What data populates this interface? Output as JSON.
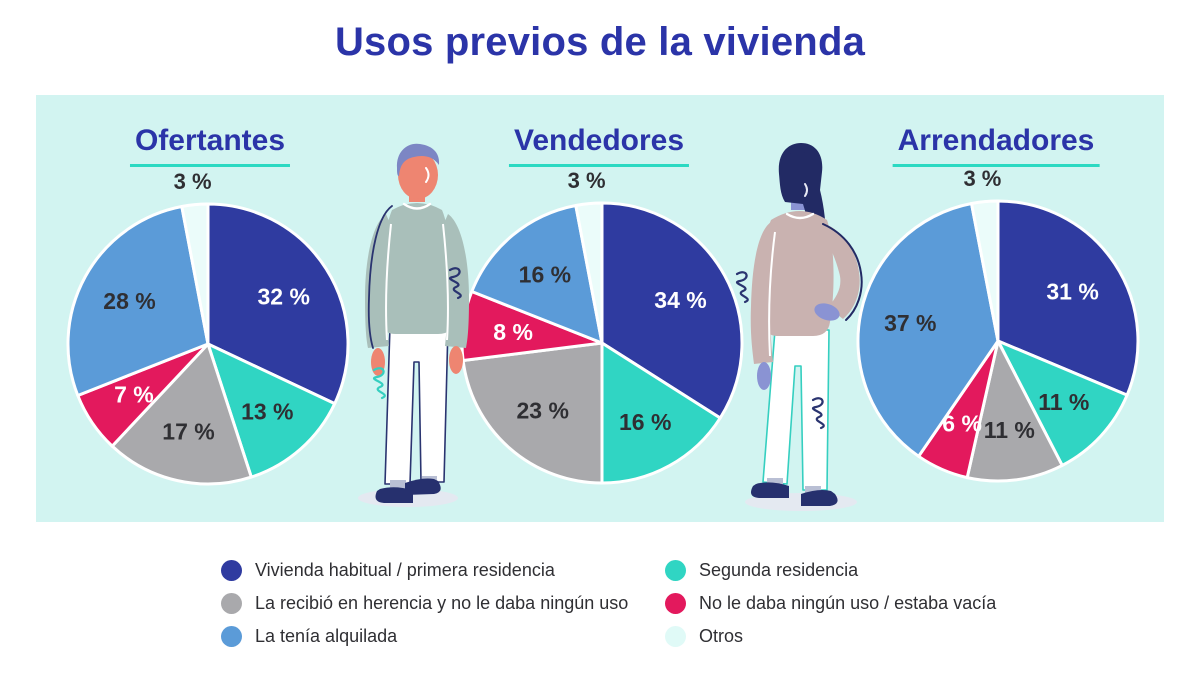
{
  "title": "Usos previos de la vivienda",
  "palette": {
    "heading_blue": "#2b34a8",
    "underline_teal": "#2bd9c2",
    "panel_bg": "#d2f4f1",
    "label_dark": "#2f2f33",
    "label_light": "#ffffff",
    "primary_blue": "#2f3ba0",
    "teal": "#30d5c3",
    "gray": "#a9a9ac",
    "light_blue": "#5b9bd8",
    "red": "#e3195d",
    "pale_cyan": "#ebfcfa"
  },
  "chart_data": [
    {
      "type": "pie",
      "title": "Ofertantes",
      "slices": [
        {
          "label": "Vivienda habitual / primera residencia",
          "value": 32,
          "display": "32 %",
          "color": "#2f3ba0",
          "label_color": "#ffffff"
        },
        {
          "label": "Segunda residencia",
          "value": 13,
          "display": "13 %",
          "color": "#30d5c3",
          "label_color": "#2f2f33"
        },
        {
          "label": "La recibió en herencia y no le daba ningún uso",
          "value": 17,
          "display": "17 %",
          "color": "#a9a9ac",
          "label_color": "#2f2f33"
        },
        {
          "label": "No le daba ningún uso / estaba vacía",
          "value": 7,
          "display": "7 %",
          "color": "#e3195d",
          "label_color": "#ffffff"
        },
        {
          "label": "La tenía alquilada",
          "value": 28,
          "display": "28 %",
          "color": "#5b9bd8",
          "label_color": "#2f2f33"
        },
        {
          "label": "Otros",
          "value": 3,
          "display": "3 %",
          "color": "#ebfcfa",
          "label_color": "#2f2f33",
          "outside": true
        }
      ]
    },
    {
      "type": "pie",
      "title": "Vendedores",
      "slices": [
        {
          "label": "Vivienda habitual / primera residencia",
          "value": 34,
          "display": "34 %",
          "color": "#2f3ba0",
          "label_color": "#ffffff"
        },
        {
          "label": "Segunda residencia",
          "value": 16,
          "display": "16 %",
          "color": "#30d5c3",
          "label_color": "#2f2f33"
        },
        {
          "label": "La recibió en herencia y no le daba ningún uso",
          "value": 23,
          "display": "23 %",
          "color": "#a9a9ac",
          "label_color": "#2f2f33"
        },
        {
          "label": "No le daba ningún uso / estaba vacía",
          "value": 8,
          "display": "8 %",
          "color": "#e3195d",
          "label_color": "#ffffff"
        },
        {
          "label": "La tenía alquilada",
          "value": 16,
          "display": "16 %",
          "color": "#5b9bd8",
          "label_color": "#2f2f33"
        },
        {
          "label": "Otros",
          "value": 3,
          "display": "3 %",
          "color": "#ebfcfa",
          "label_color": "#2f2f33",
          "outside": true
        }
      ]
    },
    {
      "type": "pie",
      "title": "Arrendadores",
      "slices": [
        {
          "label": "Vivienda habitual / primera residencia",
          "value": 31,
          "display": "31 %",
          "color": "#2f3ba0",
          "label_color": "#ffffff"
        },
        {
          "label": "Segunda residencia",
          "value": 11,
          "display": "11 %",
          "color": "#30d5c3",
          "label_color": "#2f2f33"
        },
        {
          "label": "La recibió en herencia y no le daba ningún uso",
          "value": 11,
          "display": "11 %",
          "color": "#a9a9ac",
          "label_color": "#2f2f33"
        },
        {
          "label": "No le daba ningún uso / estaba vacía",
          "value": 6,
          "display": "6 %",
          "color": "#e3195d",
          "label_color": "#ffffff"
        },
        {
          "label": "La tenía alquilada",
          "value": 37,
          "display": "37 %",
          "color": "#5b9bd8",
          "label_color": "#2f2f33"
        },
        {
          "label": "Otros",
          "value": 3,
          "display": "3 %",
          "color": "#ebfcfa",
          "label_color": "#2f2f33",
          "outside": true
        }
      ]
    }
  ],
  "legend": {
    "columns": [
      [
        {
          "label": "Vivienda habitual / primera residencia",
          "color": "#2f3ba0"
        },
        {
          "label": "La recibió en herencia y no le daba ningún uso",
          "color": "#a9a9ac"
        },
        {
          "label": "La tenía alquilada",
          "color": "#5b9bd8"
        }
      ],
      [
        {
          "label": "Segunda residencia",
          "color": "#30d5c3"
        },
        {
          "label": "No le daba ningún uso / estaba vacía",
          "color": "#e3195d"
        },
        {
          "label": "Otros",
          "color": "#e0faf7"
        }
      ]
    ]
  },
  "figures": [
    "standing-man",
    "standing-woman"
  ]
}
